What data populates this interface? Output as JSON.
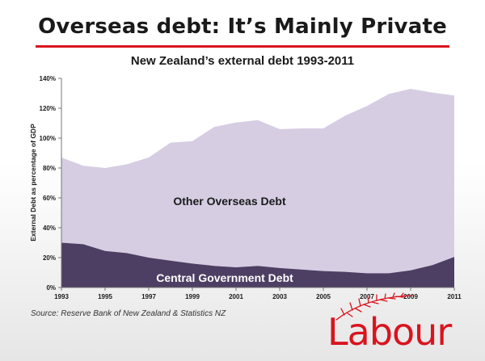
{
  "slide": {
    "title": "Overseas debt: It’s Mainly Private",
    "source": "Source:  Reserve Bank of  New Zealand & Statistics NZ",
    "logo_text": "Labour"
  },
  "colors": {
    "title_rule": "#d9141e",
    "other_debt": "#d6cde3",
    "government_debt": "#4d3f63",
    "brand_red": "#d9141e"
  },
  "chart_data": {
    "type": "area",
    "stacked": true,
    "title": "New Zealand’s external debt 1993-2011",
    "ylabel": "External Debt as percentage of GDP",
    "xlabel": "",
    "x": [
      1993,
      1994,
      1995,
      1996,
      1997,
      1998,
      1999,
      2000,
      2001,
      2002,
      2003,
      2004,
      2005,
      2006,
      2007,
      2008,
      2009,
      2010,
      2011
    ],
    "xlim": [
      1993,
      2011
    ],
    "ylim": [
      0,
      140
    ],
    "x_ticks": [
      "1993",
      "1995",
      "1997",
      "1999",
      "2001",
      "2003",
      "2005",
      "2007",
      "2009",
      "2011"
    ],
    "y_ticks": [
      "0%",
      "20%",
      "40%",
      "60%",
      "80%",
      "100%",
      "120%",
      "140%"
    ],
    "grid": false,
    "series": [
      {
        "name": "Central Government Debt",
        "values": [
          30,
          29,
          24.5,
          23,
          20,
          18,
          16,
          14.5,
          13.5,
          14.5,
          13,
          12,
          11,
          10.5,
          9.5,
          9.5,
          11.5,
          15,
          20.5
        ]
      },
      {
        "name": "Other Overseas Debt",
        "values": [
          57,
          52.5,
          55.5,
          59.5,
          67,
          79,
          82,
          93,
          97,
          97.5,
          93,
          94.5,
          95.5,
          104.5,
          112,
          120,
          121.5,
          115.5,
          108
        ]
      }
    ]
  }
}
